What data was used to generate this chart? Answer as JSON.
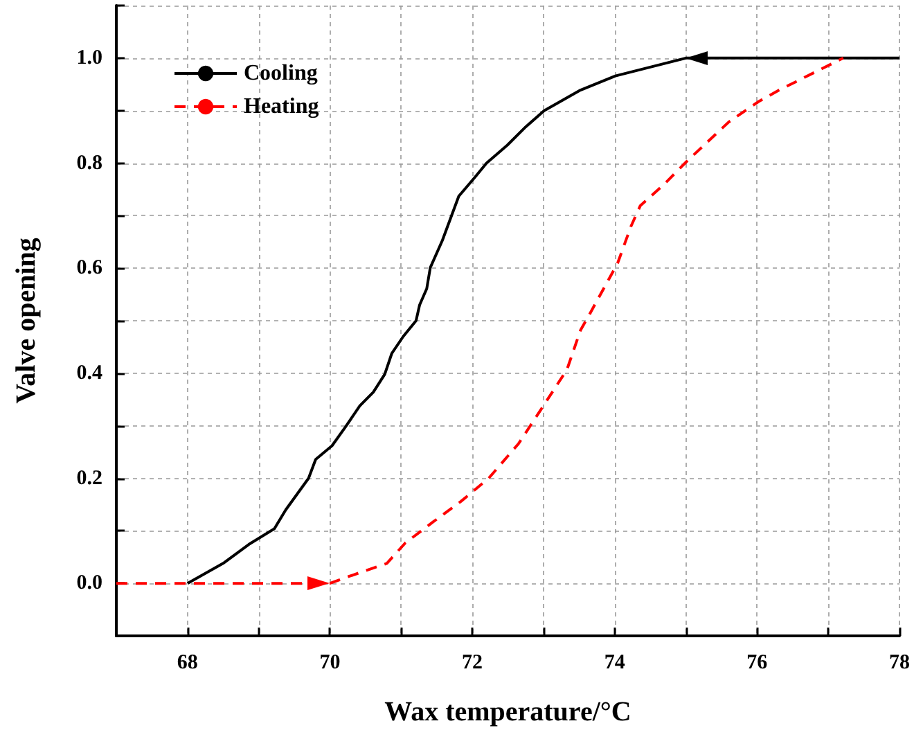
{
  "chart_data": {
    "type": "line",
    "xlabel": "Wax temperature/°C",
    "ylabel": "Valve opening",
    "xlim": [
      67,
      78
    ],
    "ylim": [
      -0.1,
      1.1
    ],
    "xticks": [
      68,
      {
        "value": 69,
        "label": null
      },
      70,
      {
        "value": 71,
        "label": null
      },
      72,
      {
        "value": 73,
        "label": null
      },
      74,
      {
        "value": 75,
        "label": null
      },
      76,
      {
        "value": 77,
        "label": null
      },
      78
    ],
    "yticks": [
      {
        "value": -0.1,
        "label": null
      },
      {
        "value": 0,
        "label": "0.0"
      },
      {
        "value": 0.1,
        "label": null
      },
      {
        "value": 0.2,
        "label": "0.2"
      },
      {
        "value": 0.3,
        "label": null
      },
      {
        "value": 0.4,
        "label": "0.4"
      },
      {
        "value": 0.5,
        "label": null
      },
      {
        "value": 0.6,
        "label": "0.6"
      },
      {
        "value": 0.7,
        "label": null
      },
      {
        "value": 0.8,
        "label": "0.8"
      },
      {
        "value": 0.9,
        "label": null
      },
      {
        "value": 1,
        "label": "1.0"
      },
      {
        "value": 1.1,
        "label": null
      }
    ],
    "grid": true,
    "legend": "top left",
    "marker": "none",
    "series": [
      {
        "name": "Cooling",
        "color": "#000000",
        "line_style": "solid",
        "x": [
          68,
          68.5,
          68.86,
          69.22,
          69.38,
          69.7,
          69.8,
          70.03,
          70.22,
          70.42,
          70.61,
          70.77,
          70.87,
          71.03,
          71.21,
          71.26,
          71.36,
          71.41,
          71.58,
          71.81,
          72.03,
          72.2,
          72.49,
          72.75,
          73.01,
          73.52,
          74.01,
          75,
          78
        ],
        "values": [
          0,
          0.038,
          0.074,
          0.104,
          0.14,
          0.2,
          0.236,
          0.262,
          0.298,
          0.338,
          0.364,
          0.398,
          0.438,
          0.47,
          0.5,
          0.53,
          0.561,
          0.601,
          0.653,
          0.737,
          0.772,
          0.8,
          0.834,
          0.869,
          0.9,
          0.939,
          0.966,
          1,
          1
        ]
      },
      {
        "name": "Heating",
        "color": "#ff0000",
        "line_style": "dashed",
        "x": [
          67,
          70,
          70.22,
          70.8,
          71.06,
          71.45,
          71.84,
          72.23,
          72.65,
          72.97,
          73.33,
          73.52,
          73.65,
          74.04,
          74.23,
          74.36,
          74.69,
          75.01,
          75.6,
          76.02,
          76.31,
          77.21
        ],
        "values": [
          0,
          0,
          0.011,
          0.038,
          0.077,
          0.117,
          0.156,
          0.2,
          0.266,
          0.332,
          0.407,
          0.482,
          0.513,
          0.609,
          0.68,
          0.719,
          0.759,
          0.803,
          0.878,
          0.917,
          0.939,
          1
        ]
      }
    ]
  }
}
